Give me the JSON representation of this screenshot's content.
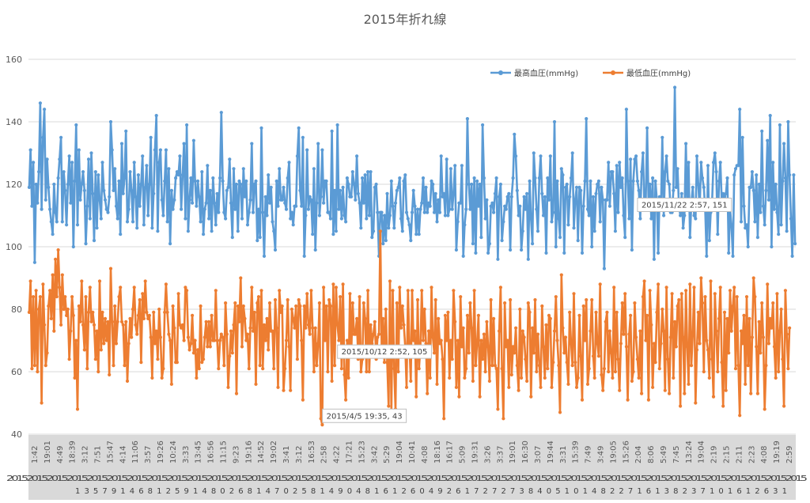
{
  "chart_data": {
    "type": "line",
    "title": "2015年折れ線",
    "ylim": [
      40,
      160
    ],
    "yticks": [
      "40",
      "60",
      "80",
      "100",
      "120",
      "140",
      "160"
    ],
    "grid": "horizontal",
    "legend_position": "top-right",
    "x_tick_labels": [
      "1:42",
      "19:01",
      "4:49",
      "18:39",
      "3:12",
      "7:51",
      "15:47",
      "4:14",
      "11:06",
      "3:57",
      "19:26",
      "10:24",
      "3:33",
      "13:45",
      "16:56",
      "11:15",
      "9:23",
      "19:16",
      "14:52",
      "19:02",
      "3:41",
      "3:12",
      "16:53",
      "2:58",
      "4:22",
      "17:21",
      "15:23",
      "3:42",
      "5:29",
      "19:04",
      "10:41",
      "4:08",
      "18:16",
      "16:17",
      "5:09",
      "19:31",
      "3:26",
      "3:37",
      "19:01",
      "16:30",
      "3:07",
      "19:44",
      "3:31",
      "15:39",
      "7:49",
      "3:49",
      "19:05",
      "15:26",
      "2:04",
      "8:06",
      "5:49",
      "7:45",
      "13:24",
      "19:04",
      "2:19",
      "2:15",
      "2:11",
      "2:23",
      "4:08",
      "19:19",
      "2:59"
    ],
    "x_category_day_row": "1 3 5 7 9 1 4 6 8 1     2 5 9 1 4 8     0 2 6 8 1 4 7 0     2 5 8 1 4 9     0 4 8 1 6 1     2 6 0 4 9     2 6 1 7     2 7 2 7     3 8 4 0 5 1 0 1 4 8 2 2 7 1 6 1 3 8 2 3 7 1 0 1 6 1 2 6 3 1",
    "x_category_year_row": "2015201520152015201520152015201520152015201520152015201520152015201520152015201520152015201520152015201520152015201520152015201520152015201520152015201520152015",
    "series": [
      {
        "name": "最高血圧(mmHg)",
        "color": "#5B9BD5",
        "values": [
          119,
          131,
          113,
          127,
          95,
          120,
          114,
          124,
          146,
          112,
          135,
          144,
          115,
          128,
          119,
          112,
          108,
          104,
          120,
          111,
          108,
          122,
          128,
          135,
          108,
          124,
          118,
          107,
          120,
          129,
          114,
          127,
          100,
          121,
          139,
          107,
          131,
          115,
          120,
          124,
          118,
          101,
          113,
          128,
          109,
          130,
          117,
          102,
          124,
          106,
          123,
          115,
          109,
          127,
          118,
          115,
          112,
          111,
          116,
          140,
          131,
          118,
          125,
          113,
          109,
          121,
          104,
          133,
          117,
          122,
          137,
          108,
          112,
          124,
          118,
          108,
          127,
          116,
          106,
          123,
          113,
          120,
          129,
          107,
          119,
          126,
          110,
          120,
          135,
          106,
          117,
          131,
          142,
          105,
          127,
          131,
          115,
          110,
          121,
          131,
          108,
          125,
          101,
          118,
          112,
          115,
          122,
          124,
          123,
          129,
          112,
          123,
          133,
          109,
          139,
          105,
          115,
          122,
          114,
          134,
          121,
          113,
          121,
          116,
          108,
          124,
          104,
          112,
          114,
          126,
          109,
          118,
          105,
          122,
          114,
          107,
          117,
          111,
          122,
          143,
          121,
          111,
          109,
          118,
          119,
          128,
          114,
          103,
          125,
          112,
          120,
          105,
          121,
          120,
          109,
          125,
          116,
          121,
          107,
          111,
          115,
          133,
          111,
          120,
          121,
          102,
          112,
          103,
          138,
          111,
          97,
          116,
          110,
          123,
          114,
          119,
          108,
          105,
          99,
          121,
          113,
          125,
          115,
          115,
          119,
          114,
          112,
          122,
          127,
          109,
          111,
          107,
          113,
          113,
          129,
          138,
          118,
          113,
          135,
          97,
          110,
          131,
          112,
          116,
          115,
          104,
          125,
          99,
          114,
          133,
          110,
          116,
          131,
          114,
          121,
          121,
          111,
          111,
          109,
          137,
          104,
          118,
          105,
          139,
          112,
          118,
          109,
          119,
          110,
          108,
          122,
          120,
          116,
          116,
          124,
          120,
          115,
          129,
          117,
          114,
          106,
          122,
          114,
          123,
          109,
          124,
          110,
          124,
          103,
          105,
          119,
          120,
          111,
          97,
          111,
          111,
          101,
          110,
          102,
          117,
          106,
          110,
          121,
          113,
          106,
          114,
          118,
          119,
          122,
          109,
          105,
          121,
          123,
          111,
          109,
          107,
          102,
          111,
          118,
          113,
          104,
          112,
          104,
          112,
          114,
          122,
          111,
          119,
          111,
          114,
          113,
          121,
          120,
          111,
          117,
          108,
          115,
          111,
          129,
          116,
          117,
          110,
          128,
          110,
          112,
          125,
          112,
          117,
          126,
          99,
          108,
          114,
          114,
          126,
          97,
          107,
          112,
          141,
          120,
          112,
          120,
          101,
          122,
          98,
          121,
          113,
          120,
          103,
          139,
          122,
          109,
          115,
          98,
          101,
          113,
          114,
          111,
          117,
          122,
          96,
          116,
          120,
          102,
          108,
          113,
          112,
          116,
          117,
          99,
          116,
          122,
          136,
          129,
          118,
          110,
          113,
          99,
          105,
          116,
          112,
          117,
          96,
          121,
          109,
          101,
          130,
          122,
          112,
          105,
          122,
          129,
          117,
          110,
          116,
          98,
          122,
          115,
          129,
          108,
          111,
          140,
          100,
          121,
          109,
          103,
          125,
          123,
          98,
          119,
          120,
          107,
          116,
          122,
          130,
          106,
          115,
          119,
          102,
          119,
          118,
          98,
          113,
          121,
          141,
          112,
          110,
          121,
          100,
          116,
          105,
          117,
          120,
          121,
          108,
          119,
          115,
          93,
          115,
          115,
          127,
          113,
          124,
          124,
          117,
          105,
          126,
          111,
          127,
          119,
          122,
          110,
          103,
          144,
          121,
          109,
          128,
          99,
          121,
          128,
          129,
          121,
          118,
          109,
          124,
          130,
          113,
          115,
          138,
          114,
          120,
          109,
          122,
          96,
          121,
          115,
          98,
          116,
          112,
          135,
          110,
          124,
          129,
          121,
          120,
          111,
          111,
          118,
          151,
          119,
          125,
          113,
          110,
          117,
          106,
          110,
          133,
          112,
          127,
          103,
          114,
          119,
          110,
          109,
          129,
          120,
          112,
          127,
          122,
          119,
          112,
          97,
          126,
          102,
          111,
          115,
          127,
          130,
          124,
          104,
          121,
          127,
          114,
          117,
          116,
          117,
          122,
          98,
          112,
          107,
          97,
          123,
          125,
          126,
          126,
          144,
          108,
          135,
          113,
          106,
          107,
          100,
          119,
          119,
          124,
          118,
          108,
          123,
          103,
          120,
          111,
          137,
          113,
          107,
          118,
          134,
          115,
          142,
          100,
          127,
          112,
          120,
          111,
          104,
          139,
          107,
          121,
          133,
          122,
          105,
          140,
          123,
          109,
          97,
          123,
          101
        ]
      },
      {
        "name": "最低血圧(mmHg)",
        "color": "#ED7D31",
        "values": [
          79,
          89,
          61,
          84,
          62,
          86,
          60,
          80,
          84,
          50,
          88,
          75,
          62,
          66,
          81,
          86,
          77,
          91,
          73,
          96,
          84,
          99,
          87,
          75,
          91,
          80,
          84,
          78,
          80,
          64,
          73,
          84,
          78,
          58,
          70,
          48,
          81,
          76,
          89,
          75,
          67,
          84,
          61,
          79,
          87,
          76,
          79,
          75,
          64,
          73,
          60,
          89,
          67,
          79,
          69,
          77,
          70,
          76,
          59,
          93,
          76,
          62,
          81,
          69,
          76,
          84,
          87,
          76,
          75,
          62,
          76,
          57,
          69,
          77,
          71,
          80,
          87,
          75,
          72,
          78,
          83,
          63,
          85,
          77,
          89,
          79,
          77,
          78,
          71,
          58,
          79,
          69,
          73,
          64,
          80,
          71,
          58,
          61,
          79,
          88,
          79,
          72,
          70,
          56,
          81,
          74,
          63,
          63,
          85,
          75,
          74,
          75,
          70,
          87,
          86,
          71,
          67,
          69,
          78,
          66,
          70,
          58,
          67,
          61,
          81,
          63,
          64,
          71,
          76,
          68,
          76,
          68,
          78,
          70,
          70,
          86,
          70,
          61,
          70,
          72,
          71,
          62,
          82,
          72,
          55,
          65,
          73,
          66,
          75,
          82,
          53,
          81,
          76,
          90,
          68,
          81,
          77,
          70,
          72,
          61,
          74,
          87,
          73,
          79,
          56,
          82,
          84,
          62,
          86,
          61,
          75,
          70,
          77,
          67,
          82,
          73,
          73,
          61,
          83,
          74,
          55,
          86,
          79,
          81,
          54,
          61,
          70,
          83,
          68,
          54,
          80,
          77,
          74,
          81,
          64,
          83,
          81,
          70,
          51,
          81,
          74,
          85,
          75,
          72,
          86,
          74,
          60,
          74,
          62,
          69,
          82,
          45,
          43,
          87,
          70,
          81,
          60,
          83,
          81,
          57,
          88,
          62,
          87,
          75,
          70,
          84,
          61,
          88,
          59,
          51,
          70,
          58,
          85,
          66,
          82,
          72,
          72,
          77,
          64,
          84,
          60,
          64,
          82,
          77,
          60,
          86,
          60,
          75,
          69,
          72,
          76,
          64,
          71,
          72,
          105,
          68,
          77,
          63,
          80,
          63,
          49,
          89,
          47,
          86,
          61,
          48,
          82,
          60,
          87,
          74,
          81,
          75,
          68,
          55,
          86,
          69,
          57,
          86,
          70,
          73,
          52,
          83,
          61,
          68,
          86,
          70,
          80,
          69,
          53,
          73,
          58,
          87,
          71,
          66,
          83,
          56,
          77,
          69,
          70,
          64,
          45,
          78,
          70,
          79,
          58,
          70,
          64,
          86,
          76,
          55,
          70,
          52,
          84,
          68,
          74,
          58,
          61,
          78,
          66,
          82,
          74,
          57,
          86,
          62,
          69,
          78,
          52,
          70,
          64,
          72,
          60,
          76,
          68,
          57,
          83,
          62,
          77,
          62,
          61,
          48,
          73,
          87,
          61,
          45,
          82,
          68,
          70,
          55,
          83,
          59,
          68,
          66,
          74,
          62,
          54,
          80,
          58,
          73,
          71,
          64,
          57,
          82,
          79,
          52,
          74,
          66,
          83,
          60,
          72,
          62,
          55,
          81,
          68,
          58,
          75,
          61,
          78,
          77,
          55,
          63,
          73,
          84,
          70,
          62,
          47,
          91,
          74,
          66,
          71,
          63,
          56,
          79,
          69,
          62,
          85,
          63,
          55,
          58,
          78,
          65,
          51,
          81,
          70,
          83,
          56,
          61,
          73,
          83,
          65,
          58,
          79,
          69,
          65,
          88,
          59,
          54,
          61,
          76,
          79,
          60,
          73,
          66,
          58,
          87,
          60,
          79,
          64,
          54,
          69,
          82,
          72,
          85,
          68,
          51,
          72,
          78,
          57,
          60,
          82,
          71,
          64,
          58,
          73,
          53,
          84,
          89,
          70,
          78,
          51,
          86,
          75,
          55,
          69,
          63,
          79,
          88,
          61,
          69,
          80,
          73,
          54,
          87,
          64,
          53,
          71,
          85,
          58,
          76,
          68,
          81,
          83,
          49,
          85,
          71,
          53,
          86,
          68,
          56,
          88,
          62,
          72,
          87,
          50,
          67,
          79,
          69,
          90,
          82,
          60,
          84,
          70,
          67,
          58,
          89,
          64,
          52,
          85,
          73,
          60,
          77,
          87,
          63,
          49,
          79,
          54,
          77,
          66,
          86,
          73,
          81,
          87,
          61,
          84,
          62,
          46,
          73,
          69,
          78,
          56,
          84,
          62,
          77,
          53,
          71,
          90,
          84,
          68,
          53,
          76,
          66,
          82,
          71,
          48,
          62,
          88,
          69,
          77,
          74,
          82,
          68,
          58,
          85,
          60,
          73,
          80,
          64,
          49,
          86,
          72,
          61,
          74
        ]
      }
    ],
    "annotations": [
      {
        "label": "2015/11/22 2:57, 151",
        "series": 0,
        "index": 474
      },
      {
        "label": "2015/10/12 2:52, 105",
        "series": 1,
        "index": 257
      },
      {
        "label": "2015/4/5 19:35, 43",
        "series": 1,
        "index": 211
      }
    ]
  }
}
